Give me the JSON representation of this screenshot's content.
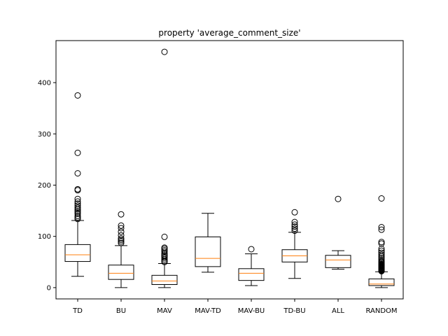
{
  "chart_data": {
    "type": "box",
    "title": "property 'average_comment_size'",
    "xlabel": "",
    "ylabel": "",
    "ylim": [
      -22,
      482
    ],
    "yticks": [
      0,
      100,
      200,
      300,
      400
    ],
    "grid": false,
    "colors": {
      "box": "#000000",
      "median": "#ff7f0e",
      "outlier": "#000000",
      "background": "#ffffff"
    },
    "categories": [
      "TD",
      "BU",
      "MAV",
      "MAV-TD",
      "MAV-BU",
      "TD-BU",
      "ALL",
      "RANDOM"
    ],
    "boxes": [
      {
        "label": "TD",
        "whislo": 22,
        "q1": 51,
        "med": 64,
        "q3": 84,
        "whishi": 131,
        "fliers": [
          134,
          137,
          140,
          144,
          147,
          150,
          153,
          156,
          160,
          164,
          168,
          173,
          190,
          192,
          223,
          263,
          375
        ]
      },
      {
        "label": "BU",
        "whislo": 0,
        "q1": 16,
        "med": 28,
        "q3": 44,
        "whishi": 82,
        "fliers": [
          87,
          90,
          93,
          96,
          102,
          109,
          116,
          121,
          143
        ]
      },
      {
        "label": "MAV",
        "whislo": 0,
        "q1": 6,
        "med": 13,
        "q3": 24,
        "whishi": 47,
        "fliers": [
          50,
          52,
          55,
          58,
          61,
          63,
          66,
          70,
          73,
          76,
          78,
          99,
          460
        ]
      },
      {
        "label": "MAV-TD",
        "whislo": 30,
        "q1": 41,
        "med": 57,
        "q3": 99,
        "whishi": 145,
        "fliers": []
      },
      {
        "label": "MAV-BU",
        "whislo": 4,
        "q1": 14,
        "med": 28,
        "q3": 37,
        "whishi": 66,
        "fliers": [
          75
        ]
      },
      {
        "label": "TD-BU",
        "whislo": 18,
        "q1": 50,
        "med": 62,
        "q3": 74,
        "whishi": 108,
        "fliers": [
          111,
          115,
          119,
          123,
          128,
          147
        ]
      },
      {
        "label": "ALL",
        "whislo": 36,
        "q1": 39,
        "med": 54,
        "q3": 63,
        "whishi": 72,
        "fliers": [
          173
        ]
      },
      {
        "label": "RANDOM",
        "whislo": 0,
        "q1": 4,
        "med": 7,
        "q3": 17,
        "whishi": 31,
        "fliers": [
          32,
          33,
          34,
          35,
          36,
          37,
          38,
          39,
          40,
          41,
          42,
          43,
          44,
          45,
          46,
          48,
          50,
          52,
          55,
          58,
          61,
          64,
          68,
          72,
          76,
          86,
          89,
          113,
          118,
          174
        ]
      }
    ]
  }
}
